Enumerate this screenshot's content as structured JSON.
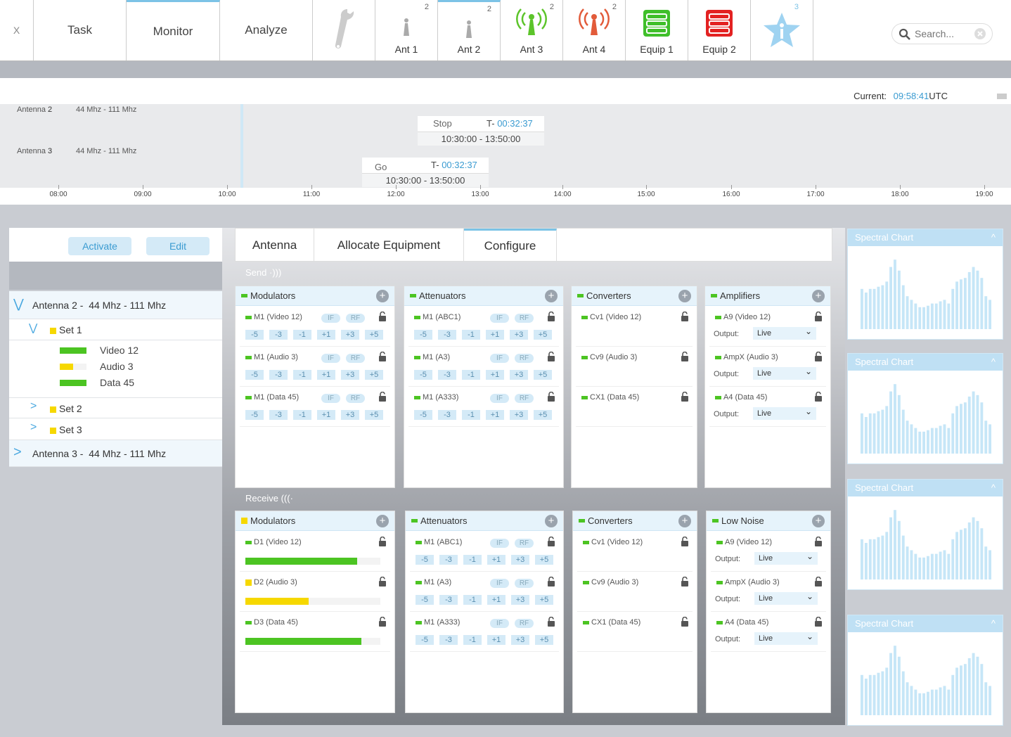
{
  "nav": {
    "close": "X",
    "tabs": [
      "Task",
      "Monitor",
      "Analyze"
    ],
    "tools": [
      {
        "label": "Ant 1",
        "badge": "2",
        "icon": "antenna-gray-icon"
      },
      {
        "label": "Ant 2",
        "badge": "2",
        "icon": "antenna-gray-icon"
      },
      {
        "label": "Ant 3",
        "badge": "2",
        "icon": "antenna-green-icon"
      },
      {
        "label": "Ant 4",
        "badge": "2",
        "icon": "antenna-red-icon"
      },
      {
        "label": "Equip 1",
        "badge": "",
        "icon": "server-green-icon"
      },
      {
        "label": "Equip 2",
        "badge": "",
        "icon": "server-red-icon"
      }
    ],
    "info_badge": "3",
    "search_placeholder": "Search..."
  },
  "timeline": {
    "current_label": "Current:",
    "current_time": "09:58:41",
    "tz": "UTC",
    "rows": [
      {
        "antenna": "Antenna",
        "num": "2",
        "band": "44 Mhz - 111 Mhz",
        "action": "Stop",
        "t": "T-",
        "countdown": "00:32:37",
        "range": "10:30:00 - 13:50:00"
      },
      {
        "antenna": "Antenna",
        "num": "3",
        "band": "44 Mhz - 111 Mhz",
        "action": "Go",
        "t": "T-",
        "countdown": "00:32:37",
        "range": "10:30:00 - 13:50:00"
      }
    ],
    "ticks": [
      "08:00",
      "09:00",
      "10:00",
      "11:00",
      "12:00",
      "13:00",
      "14:00",
      "15:00",
      "16:00",
      "17:00",
      "18:00",
      "19:00"
    ]
  },
  "left": {
    "activate": "Activate",
    "edit": "Edit",
    "antenna2": {
      "name": "Antenna",
      "num": "2",
      "sep": "-",
      "band": "44 Mhz - 111 Mhz"
    },
    "set1": "Set 1",
    "set1_items": [
      {
        "name": "Video 12",
        "level": 1.0,
        "color": "#4cc422"
      },
      {
        "name": "Audio 3",
        "level": 0.5,
        "color": "#f6d800"
      },
      {
        "name": "Data 45",
        "level": 1.0,
        "color": "#4cc422"
      }
    ],
    "set2": "Set 2",
    "set3": "Set 3",
    "antenna3": {
      "name": "Antenna",
      "num": "3",
      "sep": "-",
      "band": "44 Mhz - 111 Mhz"
    }
  },
  "center": {
    "tabs": [
      "Antenna",
      "Allocate Equipment",
      "Configure"
    ],
    "send": "Send",
    "receive": "Receive",
    "if": "IF",
    "rf": "RF",
    "output": "Output:",
    "live": "Live",
    "steps": [
      "-5",
      "-3",
      "-1",
      "+1",
      "+3",
      "+5"
    ],
    "send_cols": {
      "modulators": {
        "title": "Modulators",
        "items": [
          "M1 (Video 12)",
          "M1 (Audio 3)",
          "M1 (Data 45)"
        ]
      },
      "attenuators": {
        "title": "Attenuators",
        "items": [
          "M1 (ABC1)",
          "M1 (A3)",
          "M1 (A333)"
        ]
      },
      "converters": {
        "title": "Converters",
        "items": [
          "Cv1 (Video 12)",
          "Cv9 (Audio 3)",
          "CX1 (Data 45)"
        ]
      },
      "amplifiers": {
        "title": "Amplifiers",
        "items": [
          "A9 (Video 12)",
          "AmpX (Audio 3)",
          "A4 (Data 45)"
        ]
      }
    },
    "recv_cols": {
      "modulators": {
        "title": "Modulators",
        "items": [
          {
            "name": "D1 (Video 12)",
            "level": 0.83,
            "color": "#4cc422"
          },
          {
            "name": "D2 (Audio 3)",
            "level": 0.47,
            "color": "#f6d800"
          },
          {
            "name": "D3 (Data 45)",
            "level": 0.86,
            "color": "#4cc422"
          }
        ]
      },
      "attenuators": {
        "title": "Attenuators",
        "items": [
          "M1 (ABC1)",
          "M1 (A3)",
          "M1 (A333)"
        ]
      },
      "converters": {
        "title": "Converters",
        "items": [
          "Cv1 (Video 12)",
          "Cv9 (Audio 3)",
          "CX1 (Data 45)"
        ]
      },
      "lownoise": {
        "title": "Low Noise",
        "items": [
          "A9 (Video 12)",
          "AmpX (Audio 3)",
          "A4 (Data 45)"
        ]
      }
    }
  },
  "spectral": {
    "title": "Spectral Chart",
    "values": [
      0.55,
      0.5,
      0.55,
      0.55,
      0.58,
      0.6,
      0.65,
      0.85,
      0.95,
      0.8,
      0.6,
      0.45,
      0.4,
      0.35,
      0.3,
      0.3,
      0.32,
      0.35,
      0.35,
      0.38,
      0.4,
      0.35,
      0.55,
      0.65,
      0.68,
      0.7,
      0.78,
      0.85,
      0.8,
      0.7,
      0.45,
      0.4
    ]
  }
}
